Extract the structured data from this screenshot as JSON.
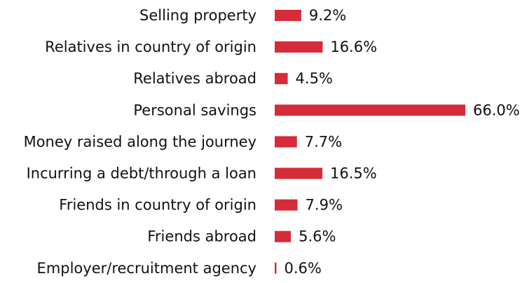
{
  "chart_data": {
    "type": "bar",
    "orientation": "horizontal",
    "categories": [
      "Selling property",
      "Relatives in country of origin",
      "Relatives abroad",
      "Personal savings",
      "Money raised along the journey",
      "Incurring a debt/through a loan",
      "Friends in country of origin",
      "Friends abroad",
      "Employer/recruitment agency"
    ],
    "values": [
      9.2,
      16.6,
      4.5,
      66.0,
      7.7,
      16.5,
      7.9,
      5.6,
      0.6
    ],
    "value_labels": [
      "9.2%",
      "16.6%",
      "4.5%",
      "66.0%",
      "7.7%",
      "16.5%",
      "7.9%",
      "5.6%",
      "0.6%"
    ],
    "color": "#d62b38"
  }
}
